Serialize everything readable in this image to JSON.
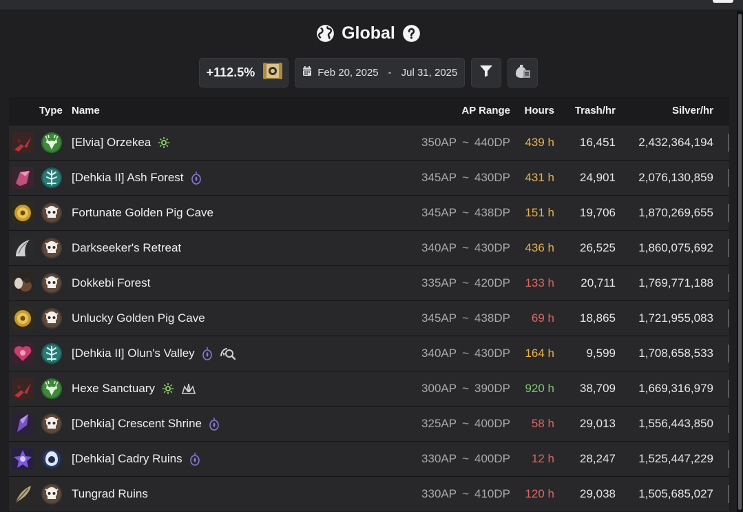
{
  "page": {
    "title": "Global",
    "bonus": "+112.5%",
    "date_start": "Feb 20, 2025",
    "date_sep": "-",
    "date_end": "Jul 31, 2025"
  },
  "columns": {
    "type": "Type",
    "name": "Name",
    "ap_range": "AP Range",
    "hours": "Hours",
    "trash": "Trash/hr",
    "silver": "Silver/hr"
  },
  "rows": [
    {
      "name": "[Elvia] Orzekea",
      "ap": "350AP",
      "dp": "440DP",
      "hours": "439 h",
      "hours_color": "gold",
      "trash": "16,451",
      "silver": "2,432,364,194",
      "type": "deer",
      "item": "red-claw",
      "tags": [
        "green-sun"
      ]
    },
    {
      "name": "[Dehkia II] Ash Forest",
      "ap": "345AP",
      "dp": "430DP",
      "hours": "431 h",
      "hours_color": "gold",
      "trash": "24,901",
      "silver": "2,076,130,859",
      "type": "teal-tree",
      "item": "pink-crystal",
      "tags": [
        "purple-lantern"
      ]
    },
    {
      "name": "Fortunate Golden Pig Cave",
      "ap": "345AP",
      "dp": "438DP",
      "hours": "151 h",
      "hours_color": "gold",
      "trash": "19,706",
      "silver": "1,870,269,655",
      "type": "skull",
      "item": "gold-coin",
      "tags": []
    },
    {
      "name": "Darkseeker's Retreat",
      "ap": "340AP",
      "dp": "430DP",
      "hours": "436 h",
      "hours_color": "gold",
      "trash": "26,525",
      "silver": "1,860,075,692",
      "type": "skull",
      "item": "silver-wing",
      "tags": []
    },
    {
      "name": "Dokkebi Forest",
      "ap": "335AP",
      "dp": "420DP",
      "hours": "133 h",
      "hours_color": "red",
      "trash": "20,711",
      "silver": "1,769,771,188",
      "type": "skull",
      "item": "brown-pouch",
      "tags": []
    },
    {
      "name": "Unlucky Golden Pig Cave",
      "ap": "345AP",
      "dp": "438DP",
      "hours": "69 h",
      "hours_color": "red",
      "trash": "18,865",
      "silver": "1,721,955,083",
      "type": "skull",
      "item": "gold-coin",
      "tags": []
    },
    {
      "name": "[Dehkia II] Olun's Valley",
      "ap": "340AP",
      "dp": "430DP",
      "hours": "164 h",
      "hours_color": "gold",
      "trash": "9,599",
      "silver": "1,708,658,533",
      "type": "teal-tree",
      "item": "pink-heart",
      "tags": [
        "purple-lantern",
        "gray-search"
      ]
    },
    {
      "name": "Hexe Sanctuary",
      "ap": "300AP",
      "dp": "390DP",
      "hours": "920 h",
      "hours_color": "green",
      "trash": "38,709",
      "silver": "1,669,316,979",
      "type": "deer",
      "item": "red-claw",
      "tags": [
        "green-sun",
        "gray-crown"
      ]
    },
    {
      "name": "[Dehkia] Crescent Shrine",
      "ap": "325AP",
      "dp": "400DP",
      "hours": "58 h",
      "hours_color": "red",
      "trash": "29,013",
      "silver": "1,556,443,850",
      "type": "skull",
      "item": "purple-shard",
      "tags": [
        "purple-lantern"
      ]
    },
    {
      "name": "[Dehkia] Cadry Ruins",
      "ap": "330AP",
      "dp": "400DP",
      "hours": "12 h",
      "hours_color": "red",
      "trash": "28,247",
      "silver": "1,525,447,229",
      "type": "blue-hood",
      "item": "purple-star",
      "tags": [
        "purple-lantern"
      ]
    },
    {
      "name": "Tungrad Ruins",
      "ap": "330AP",
      "dp": "410DP",
      "hours": "120 h",
      "hours_color": "red",
      "trash": "29,038",
      "silver": "1,505,685,027",
      "type": "skull",
      "item": "feather",
      "tags": []
    }
  ],
  "colors": {
    "gold": "#e5b24a",
    "red": "#dc6660",
    "green": "#7cc76e"
  },
  "icons": {
    "title": "globe-icon",
    "help": "help-icon",
    "bonus": "scroll-icon",
    "date": "calendar-icon",
    "filter": "filter-icon",
    "loot": "loot-bag-icon",
    "tilde": "~"
  }
}
